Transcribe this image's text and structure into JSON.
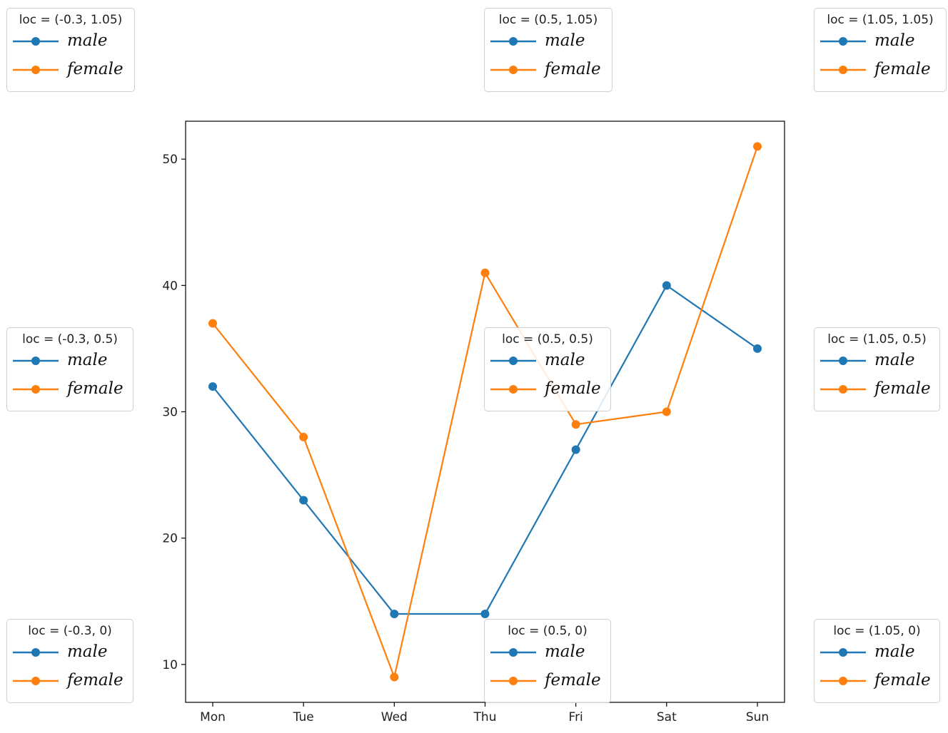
{
  "chart_data": {
    "type": "line",
    "title": "",
    "xlabel": "",
    "ylabel": "",
    "categories": [
      "Mon",
      "Tue",
      "Wed",
      "Thu",
      "Fri",
      "Sat",
      "Sun"
    ],
    "yticks": [
      10,
      20,
      30,
      40,
      50
    ],
    "ylim": [
      7,
      53
    ],
    "grid": false,
    "series": [
      {
        "name": "male",
        "color": "#1f77b4",
        "values": [
          32,
          23,
          14,
          14,
          27,
          40,
          35
        ]
      },
      {
        "name": "female",
        "color": "#ff7f0e",
        "values": [
          37,
          28,
          9,
          41,
          29,
          30,
          51
        ]
      }
    ],
    "legends": [
      {
        "title": "loc = (-0.3, 1.05)",
        "entries": [
          "male",
          "female"
        ]
      },
      {
        "title": "loc = (0.5, 1.05)",
        "entries": [
          "male",
          "female"
        ]
      },
      {
        "title": "loc = (1.05, 1.05)",
        "entries": [
          "male",
          "female"
        ]
      },
      {
        "title": "loc = (-0.3, 0.5)",
        "entries": [
          "male",
          "female"
        ]
      },
      {
        "title": "loc = (0.5, 0.5)",
        "entries": [
          "male",
          "female"
        ]
      },
      {
        "title": "loc = (1.05, 0.5)",
        "entries": [
          "male",
          "female"
        ]
      },
      {
        "title": "loc = (-0.3, 0)",
        "entries": [
          "male",
          "female"
        ]
      },
      {
        "title": "loc = (0.5, 0)",
        "entries": [
          "male",
          "female"
        ]
      },
      {
        "title": "loc = (1.05, 0)",
        "entries": [
          "male",
          "female"
        ]
      }
    ]
  }
}
